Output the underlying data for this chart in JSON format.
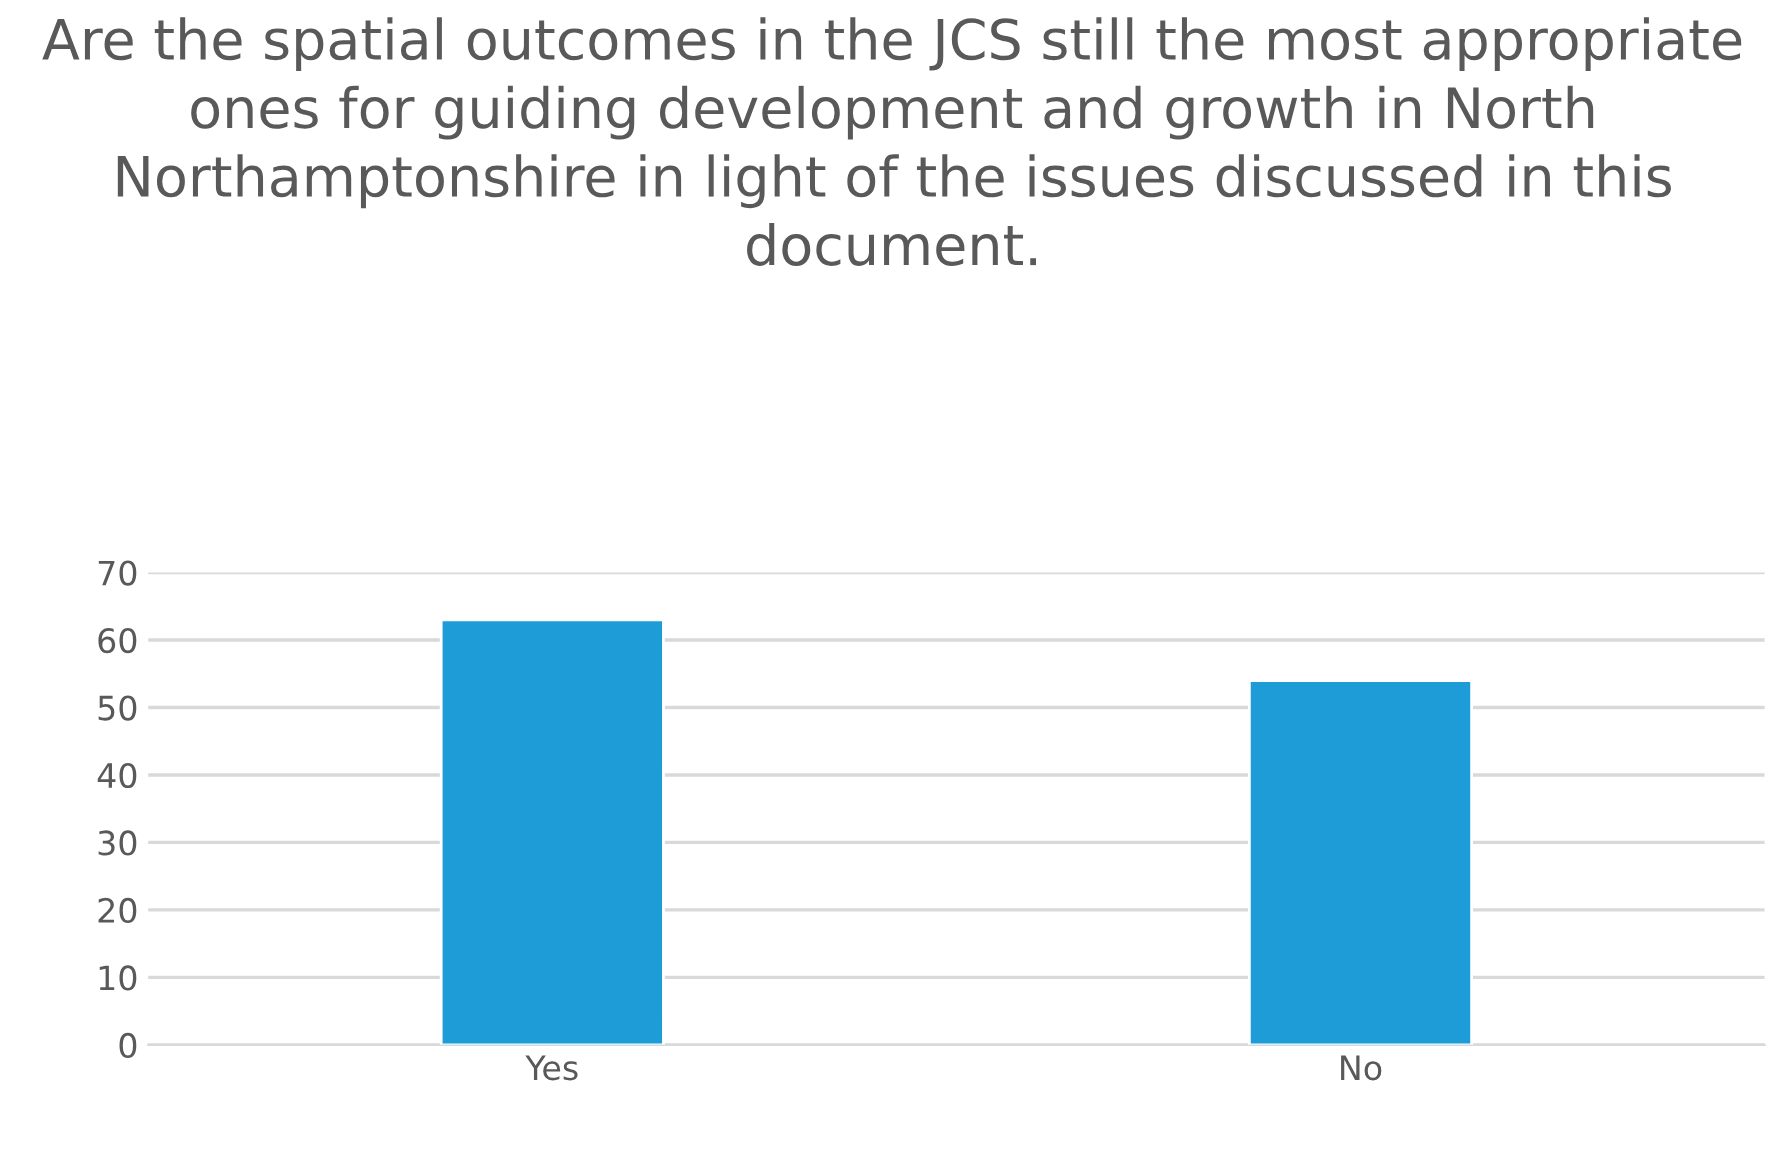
{
  "chart_data": {
    "type": "bar",
    "title": "Are the spatial outcomes in the JCS still the most appropriate ones for guiding development and growth in North Northamptonshire in light of the issues discussed in this document.",
    "categories": [
      "Yes",
      "No"
    ],
    "values": [
      63,
      54
    ],
    "color": "#1e9cd7",
    "ylim": [
      0,
      70
    ],
    "yticks": [
      0,
      10,
      20,
      30,
      40,
      50,
      60,
      70
    ],
    "grid": "y",
    "legend": false
  }
}
